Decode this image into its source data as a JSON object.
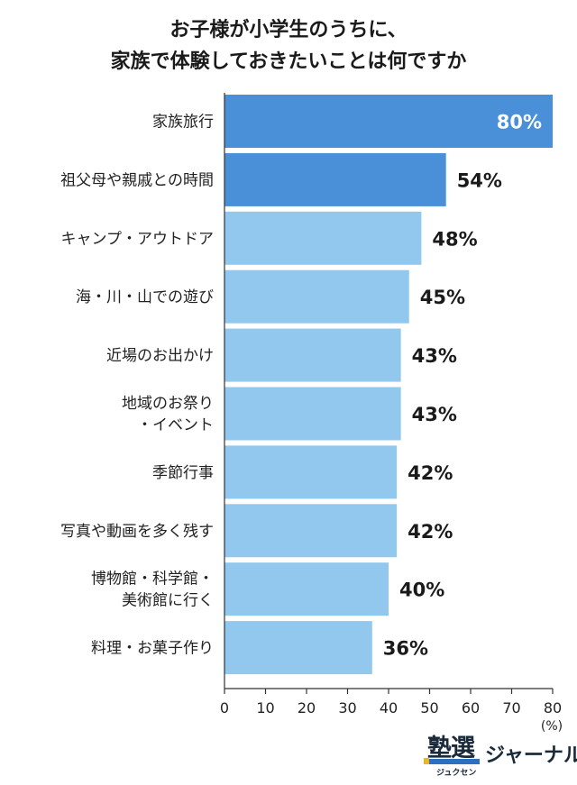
{
  "title_lines": [
    "お子様が小学生のうちに、",
    "家族で体験しておきたいことは何ですか"
  ],
  "chart_data": {
    "type": "bar",
    "orientation": "horizontal",
    "categories": [
      [
        "家族旅行"
      ],
      [
        "祖父母や親戚との時間"
      ],
      [
        "キャンプ・アウトドア"
      ],
      [
        "海・川・山での遊び"
      ],
      [
        "近場のお出かけ"
      ],
      [
        "地域のお祭り",
        "・イベント"
      ],
      [
        "季節行事"
      ],
      [
        "写真や動画を多く残す"
      ],
      [
        "博物館・科学館・",
        "美術館に行く"
      ],
      [
        "料理・お菓子作り"
      ]
    ],
    "values": [
      80,
      54,
      48,
      45,
      43,
      43,
      42,
      42,
      40,
      36
    ],
    "value_labels": [
      "80%",
      "54%",
      "48%",
      "45%",
      "43%",
      "43%",
      "42%",
      "42%",
      "40%",
      "36%"
    ],
    "colors": [
      "#4a90d9",
      "#4a90d9",
      "#92c8ee",
      "#92c8ee",
      "#92c8ee",
      "#92c8ee",
      "#92c8ee",
      "#92c8ee",
      "#92c8ee",
      "#92c8ee"
    ],
    "xticks": [
      "0",
      "10",
      "20",
      "30",
      "40",
      "50",
      "60",
      "70",
      "80"
    ],
    "xlim": [
      0,
      80
    ],
    "unit": "(%)",
    "grid": false
  },
  "logo": {
    "kanji": "塾選",
    "kana": "ジャーナル",
    "sub": "ジュクセン"
  }
}
